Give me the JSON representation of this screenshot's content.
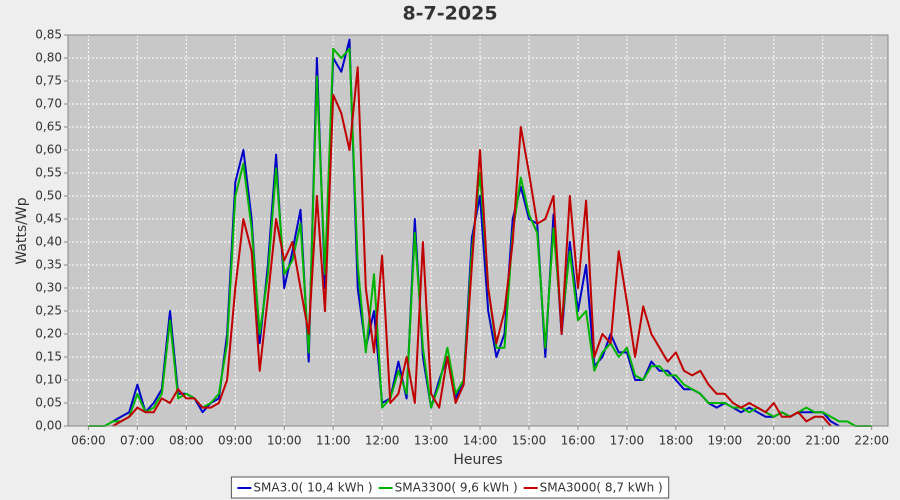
{
  "chart_data": {
    "type": "line",
    "title": "8-7-2025",
    "x_label": "Heures",
    "y_label": "Watts/Wp",
    "x": [
      "06:00",
      "06:10",
      "06:20",
      "06:30",
      "06:40",
      "06:50",
      "07:00",
      "07:10",
      "07:20",
      "07:30",
      "07:40",
      "07:50",
      "08:00",
      "08:10",
      "08:20",
      "08:30",
      "08:40",
      "08:50",
      "09:00",
      "09:10",
      "09:20",
      "09:30",
      "09:40",
      "09:50",
      "10:00",
      "10:10",
      "10:20",
      "10:30",
      "10:40",
      "10:50",
      "11:00",
      "11:10",
      "11:20",
      "11:30",
      "11:40",
      "11:50",
      "12:00",
      "12:10",
      "12:20",
      "12:30",
      "12:40",
      "12:50",
      "13:00",
      "13:10",
      "13:20",
      "13:30",
      "13:40",
      "13:50",
      "14:00",
      "14:10",
      "14:20",
      "14:30",
      "14:40",
      "14:50",
      "15:00",
      "15:10",
      "15:20",
      "15:30",
      "15:40",
      "15:50",
      "16:00",
      "16:10",
      "16:20",
      "16:30",
      "16:40",
      "16:50",
      "17:00",
      "17:10",
      "17:20",
      "17:30",
      "17:40",
      "17:50",
      "18:00",
      "18:10",
      "18:20",
      "18:30",
      "18:40",
      "18:50",
      "19:00",
      "19:10",
      "19:20",
      "19:30",
      "19:40",
      "19:50",
      "20:00",
      "20:10",
      "20:20",
      "20:30",
      "20:40",
      "20:50",
      "21:00",
      "21:10",
      "21:20",
      "21:30",
      "21:40",
      "21:50",
      "22:00"
    ],
    "xlim": [
      "05:35",
      "22:20"
    ],
    "xticks": [
      "06:00",
      "07:00",
      "08:00",
      "09:00",
      "10:00",
      "11:00",
      "12:00",
      "13:00",
      "14:00",
      "15:00",
      "16:00",
      "17:00",
      "18:00",
      "19:00",
      "20:00",
      "21:00",
      "22:00"
    ],
    "ylim": [
      0,
      0.85
    ],
    "yticks": [
      {
        "value": 0,
        "label": "0,00"
      },
      {
        "value": 0.05,
        "label": "0,05"
      },
      {
        "value": 0.1,
        "label": "0,10"
      },
      {
        "value": 0.15,
        "label": "0,15"
      },
      {
        "value": 0.2,
        "label": "0,20"
      },
      {
        "value": 0.25,
        "label": "0,25"
      },
      {
        "value": 0.3,
        "label": "0,30"
      },
      {
        "value": 0.35,
        "label": "0,35"
      },
      {
        "value": 0.4,
        "label": "0,40"
      },
      {
        "value": 0.45,
        "label": "0,45"
      },
      {
        "value": 0.5,
        "label": "0,50"
      },
      {
        "value": 0.55,
        "label": "0,55"
      },
      {
        "value": 0.6,
        "label": "0,60"
      },
      {
        "value": 0.65,
        "label": "0,65"
      },
      {
        "value": 0.7,
        "label": "0,70"
      },
      {
        "value": 0.75,
        "label": "0,75"
      },
      {
        "value": 0.8,
        "label": "0,80"
      },
      {
        "value": 0.85,
        "label": "0,85"
      }
    ],
    "grid": true,
    "series": [
      {
        "name": "SMA3.0( 10,4 kWh )",
        "color": "#0000c8",
        "values": [
          null,
          null,
          null,
          0.01,
          0.02,
          0.03,
          0.09,
          0.03,
          0.05,
          0.08,
          0.25,
          0.07,
          0.07,
          0.06,
          0.03,
          0.05,
          0.06,
          0.2,
          0.53,
          0.6,
          0.45,
          0.18,
          0.35,
          0.59,
          0.3,
          0.38,
          0.47,
          0.14,
          0.8,
          0.3,
          0.8,
          0.77,
          0.84,
          0.3,
          0.17,
          0.25,
          0.05,
          0.06,
          0.14,
          0.06,
          0.45,
          0.15,
          0.04,
          0.1,
          0.15,
          0.06,
          0.1,
          0.41,
          0.5,
          0.25,
          0.15,
          0.2,
          0.45,
          0.52,
          0.45,
          0.44,
          0.15,
          0.46,
          0.2,
          0.4,
          0.25,
          0.35,
          0.13,
          0.15,
          0.2,
          0.16,
          0.16,
          0.1,
          0.1,
          0.14,
          0.12,
          0.12,
          0.1,
          0.08,
          0.08,
          0.07,
          0.05,
          0.04,
          0.05,
          0.04,
          0.03,
          0.04,
          0.03,
          0.02,
          0.02,
          0.03,
          0.02,
          0.03,
          0.03,
          0.03,
          0.03,
          0.01,
          0,
          null,
          null,
          null,
          null
        ]
      },
      {
        "name": "SMA3300( 9,6 kWh )",
        "color": "#00b400",
        "values": [
          0,
          0,
          0,
          0.01,
          0.01,
          0.02,
          0.07,
          0.03,
          0.04,
          0.07,
          0.23,
          0.06,
          0.07,
          0.06,
          0.04,
          0.05,
          0.07,
          0.18,
          0.5,
          0.57,
          0.43,
          0.2,
          0.33,
          0.56,
          0.33,
          0.36,
          0.44,
          0.16,
          0.76,
          0.33,
          0.82,
          0.8,
          0.82,
          0.35,
          0.16,
          0.33,
          0.04,
          0.06,
          0.12,
          0.07,
          0.42,
          0.17,
          0.04,
          0.09,
          0.17,
          0.07,
          0.1,
          0.38,
          0.55,
          0.3,
          0.17,
          0.17,
          0.42,
          0.54,
          0.46,
          0.42,
          0.17,
          0.43,
          0.22,
          0.38,
          0.23,
          0.25,
          0.12,
          0.16,
          0.18,
          0.15,
          0.17,
          0.11,
          0.1,
          0.13,
          0.13,
          0.11,
          0.11,
          0.09,
          0.08,
          0.07,
          0.05,
          0.05,
          0.05,
          0.04,
          0.04,
          0.03,
          0.04,
          0.03,
          0.02,
          0.03,
          0.02,
          0.03,
          0.04,
          0.03,
          0.03,
          0.02,
          0.01,
          0.01,
          0,
          0,
          0
        ]
      },
      {
        "name": "SMA3000( 8,7 kWh )",
        "color": "#c00000",
        "values": [
          null,
          null,
          null,
          0,
          0.01,
          0.02,
          0.04,
          0.03,
          0.03,
          0.06,
          0.05,
          0.08,
          0.06,
          0.06,
          0.04,
          0.04,
          0.05,
          0.1,
          0.3,
          0.45,
          0.38,
          0.12,
          0.28,
          0.45,
          0.36,
          0.4,
          0.3,
          0.2,
          0.5,
          0.25,
          0.72,
          0.68,
          0.6,
          0.78,
          0.3,
          0.16,
          0.37,
          0.05,
          0.07,
          0.15,
          0.05,
          0.4,
          0.07,
          0.04,
          0.15,
          0.05,
          0.09,
          0.35,
          0.6,
          0.3,
          0.18,
          0.25,
          0.4,
          0.65,
          0.55,
          0.44,
          0.45,
          0.5,
          0.2,
          0.5,
          0.3,
          0.49,
          0.15,
          0.2,
          0.18,
          0.38,
          0.27,
          0.15,
          0.26,
          0.2,
          0.17,
          0.14,
          0.16,
          0.12,
          0.11,
          0.12,
          0.09,
          0.07,
          0.07,
          0.05,
          0.04,
          0.05,
          0.04,
          0.03,
          0.05,
          0.02,
          0.02,
          0.03,
          0.01,
          0.02,
          0.02,
          0,
          null,
          null,
          null,
          null,
          null
        ]
      }
    ]
  }
}
